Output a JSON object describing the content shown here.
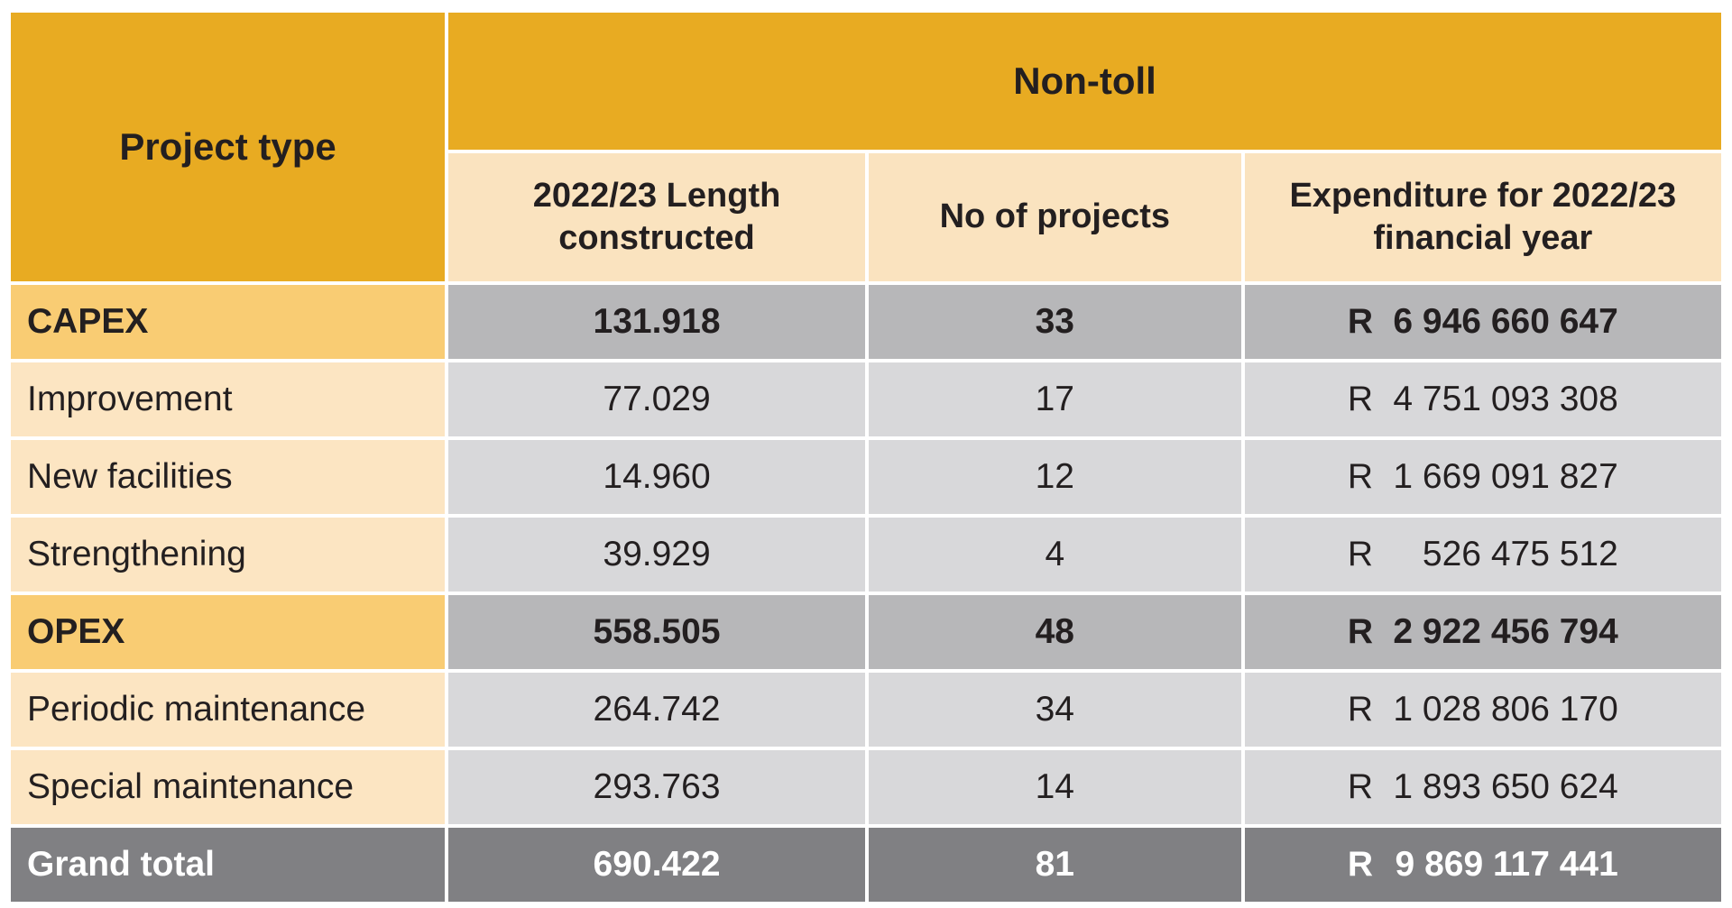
{
  "header": {
    "project_type": "Project type",
    "group": "Non-toll",
    "columns": [
      "2022/23 Length constructed",
      "No of projects",
      "Expenditure for 2022/23 financial year"
    ]
  },
  "currency": "R",
  "rows": [
    {
      "label": "CAPEX",
      "length": "131.918",
      "projects": "33",
      "expenditure": "6 946 660 647",
      "kind": "group"
    },
    {
      "label": "Improvement",
      "length": "77.029",
      "projects": "17",
      "expenditure": "4 751 093 308",
      "kind": "item"
    },
    {
      "label": "New facilities",
      "length": "14.960",
      "projects": "12",
      "expenditure": "1 669 091 827",
      "kind": "item"
    },
    {
      "label": "Strengthening",
      "length": "39.929",
      "projects": "4",
      "expenditure": "526 475 512",
      "kind": "item"
    },
    {
      "label": "OPEX",
      "length": "558.505",
      "projects": "48",
      "expenditure": "2 922 456 794",
      "kind": "group"
    },
    {
      "label": "Periodic maintenance",
      "length": "264.742",
      "projects": "34",
      "expenditure": "1 028 806 170",
      "kind": "item"
    },
    {
      "label": "Special maintenance",
      "length": "293.763",
      "projects": "14",
      "expenditure": "1 893 650 624",
      "kind": "item"
    },
    {
      "label": "Grand total",
      "length": "690.422",
      "projects": "81",
      "expenditure": "9 869 117 441",
      "kind": "total"
    }
  ],
  "colors": {
    "header": "#e8ab22",
    "subheader": "#fae3bf",
    "group_label": "#f9cc73",
    "group_value": "#b7b7b9",
    "item_label": "#fce5c2",
    "item_value": "#d8d8da",
    "total": "#808083"
  }
}
